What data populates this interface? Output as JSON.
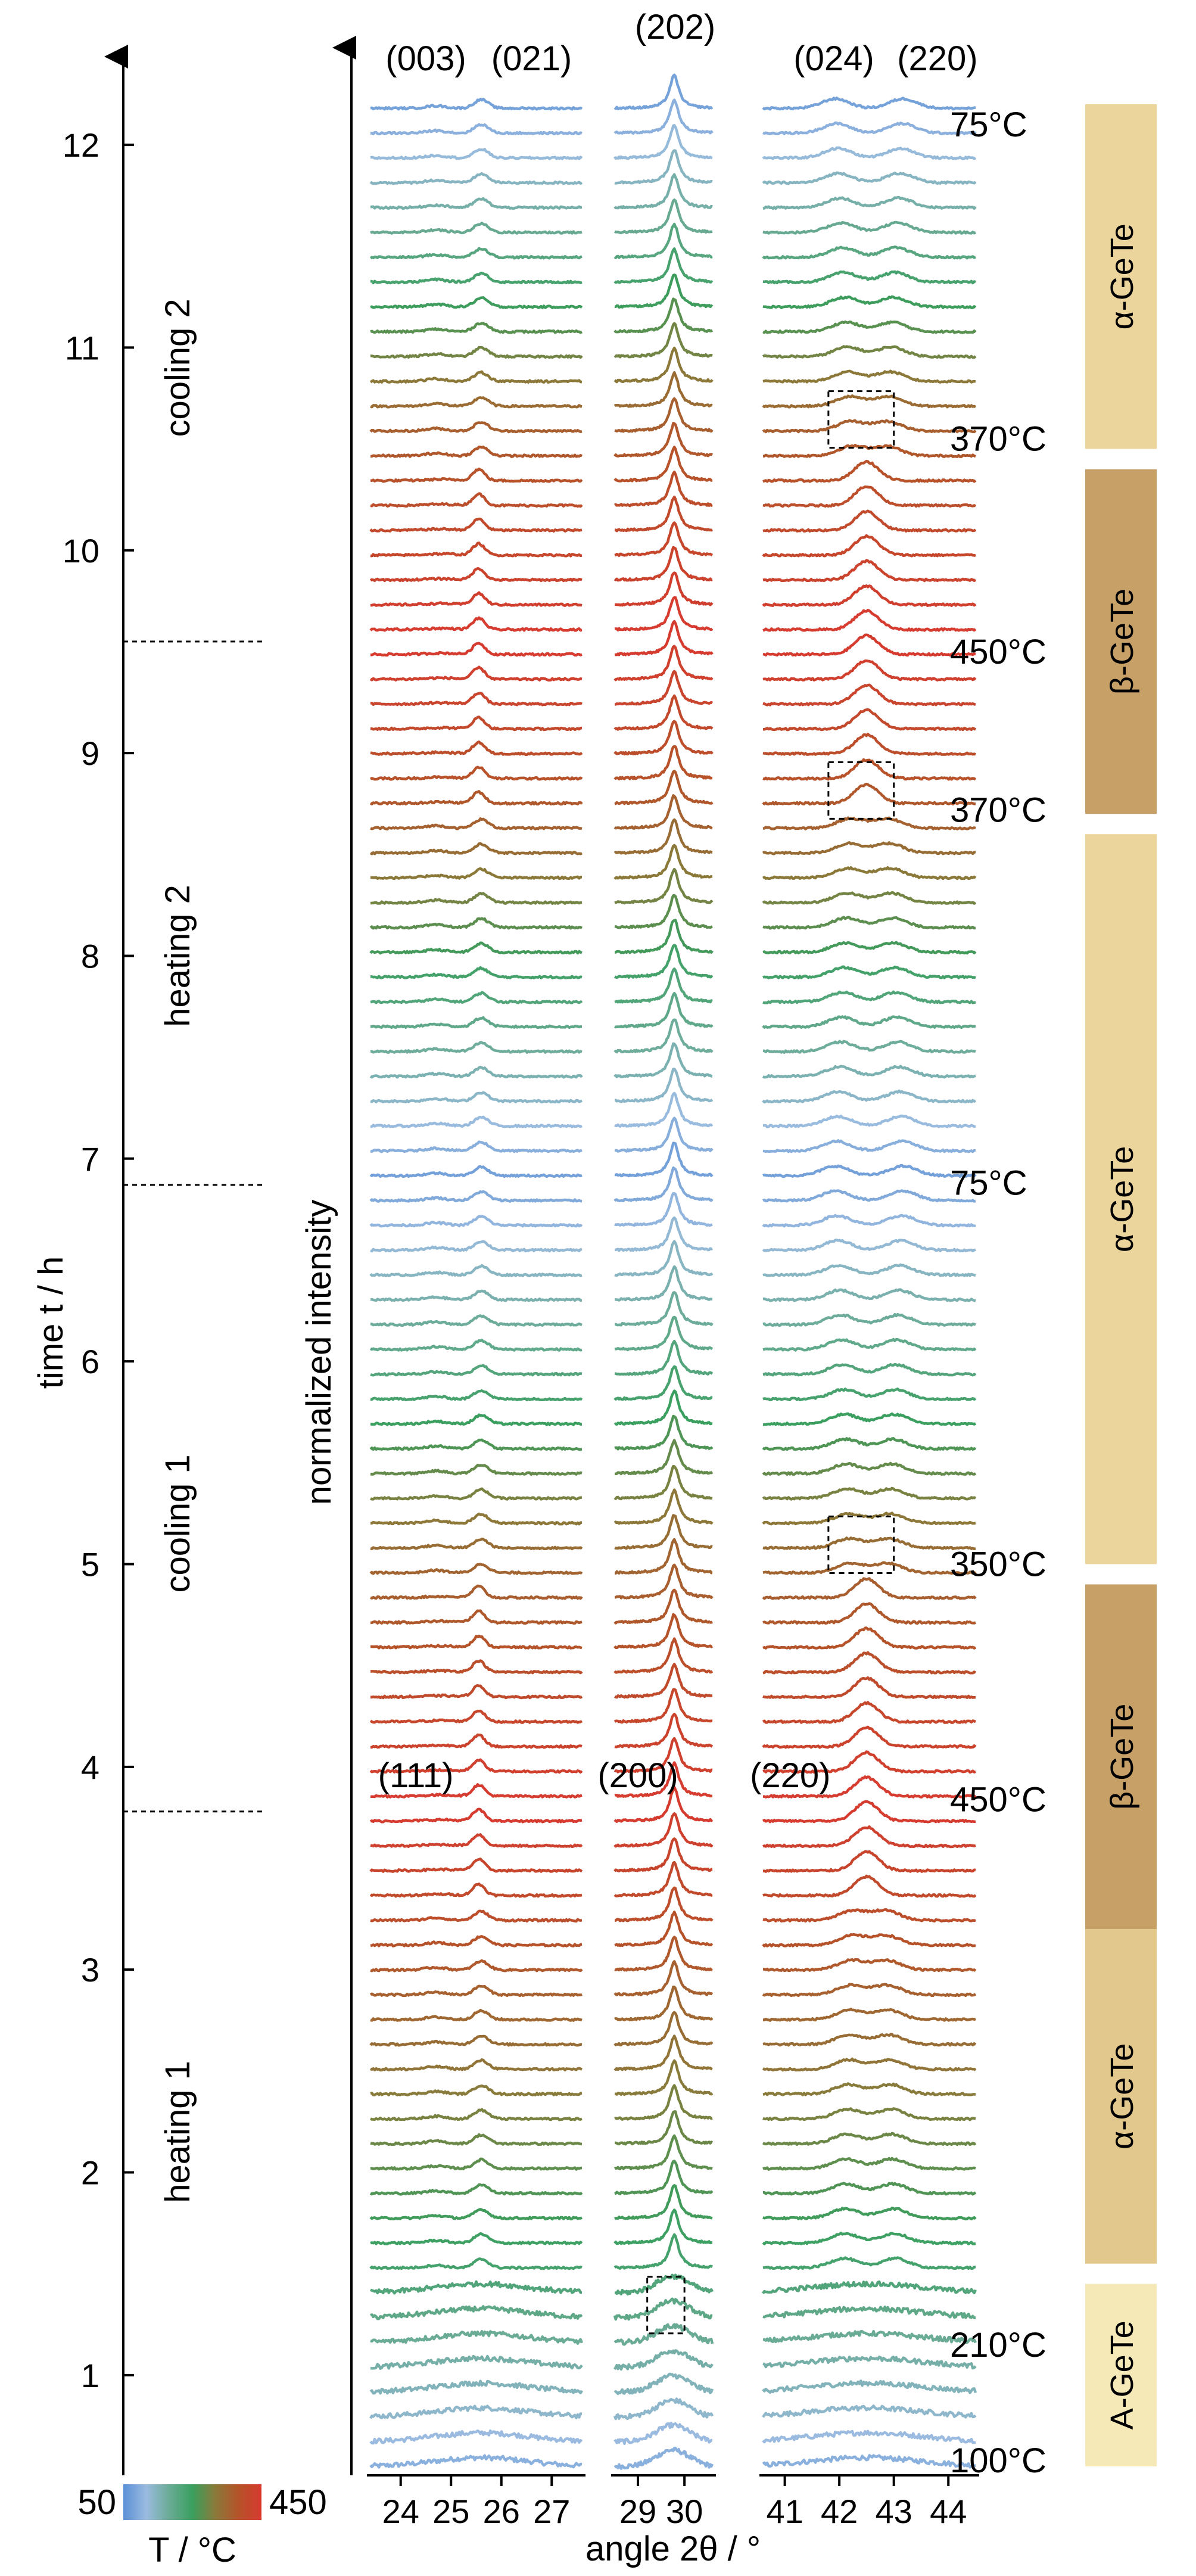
{
  "chart_data": {
    "type": "line",
    "title": "",
    "xlabel": "angle 2θ / °",
    "ylabel_left": "time t / h",
    "ylabel_stack": "normalized intensity",
    "time_axis": {
      "ylim": [
        0.5,
        12.3
      ],
      "ticks": [
        1,
        2,
        3,
        4,
        5,
        6,
        7,
        8,
        9,
        10,
        11,
        12
      ]
    },
    "panels": [
      {
        "name": "left",
        "xlim": [
          23.4,
          27.6
        ],
        "ticks": [
          24,
          25,
          26,
          27
        ],
        "peaks_deg": [
          24.7,
          25.6
        ]
      },
      {
        "name": "middle",
        "xlim": [
          28.5,
          30.6
        ],
        "ticks": [
          29,
          30
        ],
        "peaks_deg": [
          29.8
        ]
      },
      {
        "name": "right",
        "xlim": [
          40.6,
          44.5
        ],
        "ticks": [
          41,
          42,
          43,
          44
        ],
        "peaks_deg": [
          42.2,
          42.6,
          43.1
        ]
      }
    ],
    "n_scans": 96,
    "time_start_h": 0.55,
    "time_end_h": 12.18,
    "colorbar": {
      "label": "T / °C",
      "min": 50,
      "max": 450,
      "min_label": "50",
      "max_label": "450",
      "colors": [
        "#5b8fd6",
        "#9abbdf",
        "#6aab95",
        "#3a9f5f",
        "#8a7a3a",
        "#b5532a",
        "#d83a2f"
      ]
    },
    "phase_transition_times_h": [
      3.78,
      6.87,
      9.55
    ],
    "segments": [
      {
        "label": "heating 1",
        "t": 2.2
      },
      {
        "label": "cooling 1",
        "t": 5.2
      },
      {
        "label": "heating 2",
        "t": 8.0
      },
      {
        "label": "cooling 2",
        "t": 10.9
      }
    ],
    "reflections_top": [
      {
        "label": "(003)",
        "panel": "left",
        "pos": 24.5,
        "t": 12.3
      },
      {
        "label": "(021)",
        "panel": "left",
        "pos": 26.6,
        "t": 12.3
      },
      {
        "label": "(202)",
        "panel": "middle",
        "pos": 29.8,
        "t": 12.45
      },
      {
        "label": "(024)",
        "panel": "right",
        "pos": 41.9,
        "t": 12.3
      },
      {
        "label": "(220)",
        "panel": "right",
        "pos": 43.8,
        "t": 12.3
      }
    ],
    "reflections_cubic": [
      {
        "label": "(111)",
        "panel": "left",
        "pos": 24.3,
        "t": 3.9
      },
      {
        "label": "(200)",
        "panel": "middle",
        "pos": 29.0,
        "t": 3.9
      },
      {
        "label": "(220)",
        "panel": "right",
        "pos": 41.1,
        "t": 3.9
      }
    ],
    "temperature_annotations": [
      {
        "label": "75°C",
        "t": 12.1,
        "temp": 75
      },
      {
        "label": "370°C",
        "t": 10.55,
        "temp": 370
      },
      {
        "label": "450°C",
        "t": 9.5,
        "temp": 450
      },
      {
        "label": "370°C",
        "t": 8.72,
        "temp": 370
      },
      {
        "label": "75°C",
        "t": 6.88,
        "temp": 75
      },
      {
        "label": "350°C",
        "t": 5.0,
        "temp": 350
      },
      {
        "label": "450°C",
        "t": 3.84,
        "temp": 450
      },
      {
        "label": "210°C",
        "t": 1.15,
        "temp": 210
      },
      {
        "label": "100°C",
        "t": 0.58,
        "temp": 100
      }
    ],
    "dashed_boxes": [
      {
        "panel": "right",
        "x1": 41.8,
        "x2": 43.0,
        "t": 10.55
      },
      {
        "panel": "right",
        "x1": 41.8,
        "x2": 43.0,
        "t": 8.72
      },
      {
        "panel": "right",
        "x1": 41.8,
        "x2": 43.0,
        "t": 5.0
      },
      {
        "panel": "middle",
        "x1": 29.2,
        "x2": 30.0,
        "t": 1.25
      }
    ],
    "phase_bands": [
      {
        "label": "α-GeTe",
        "t_from": 10.5,
        "t_to": 12.2,
        "color": "#ecd49d"
      },
      {
        "label": "β-GeTe",
        "t_from": 8.7,
        "t_to": 10.4,
        "color": "#c7a068"
      },
      {
        "label": "α-GeTe",
        "t_from": 5.0,
        "t_to": 8.6,
        "color": "#ecd49d"
      },
      {
        "label": "β-GeTe",
        "t_from": 3.2,
        "t_to": 4.9,
        "color": "#c7a068"
      },
      {
        "label": "α-GeTe",
        "t_from": 1.55,
        "t_to": 3.2,
        "color": "#e2c88c"
      },
      {
        "label": "A-GeTe",
        "t_from": 0.55,
        "t_to": 1.45,
        "color": "#f5e9b8"
      }
    ]
  }
}
